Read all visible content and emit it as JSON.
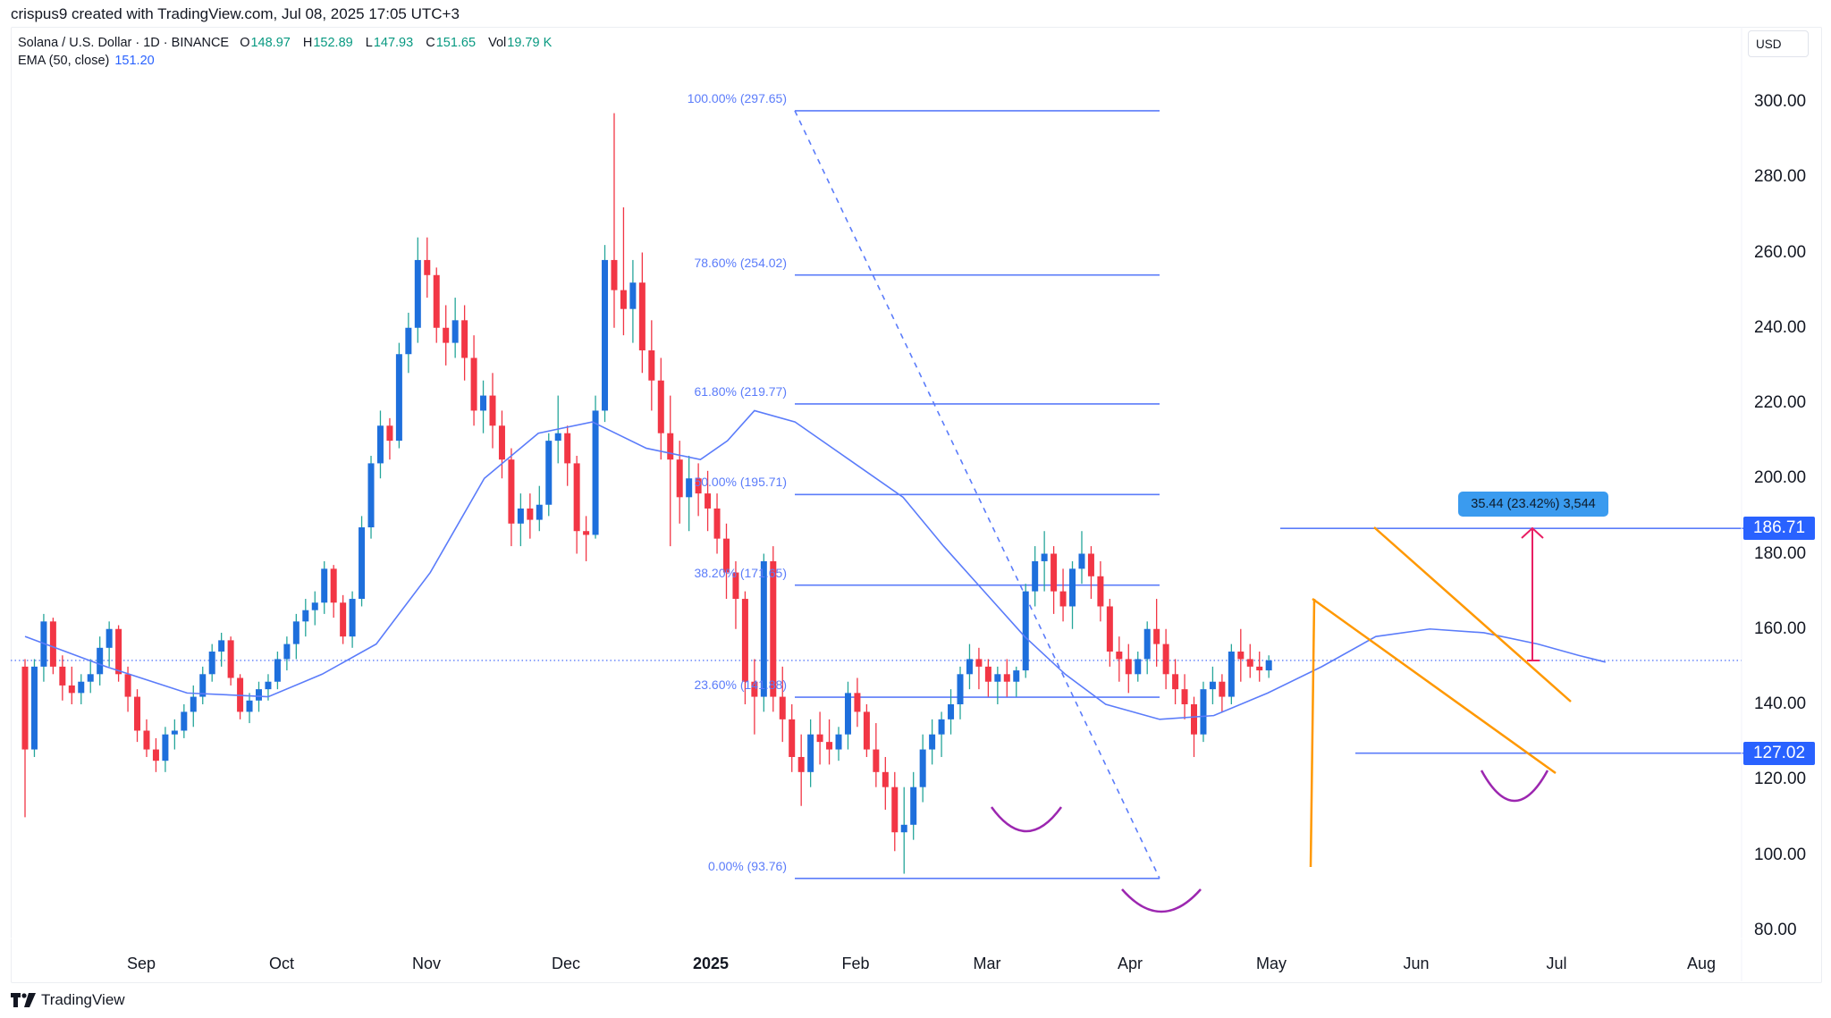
{
  "header": {
    "credit": "crispus9 created with TradingView.com, Jul 08, 2025 17:05 UTC+3"
  },
  "legend": {
    "symbol": "Solana / U.S. Dollar · 1D · BINANCE",
    "open_key": "O",
    "open": "148.97",
    "high_key": "H",
    "high": "152.89",
    "low_key": "L",
    "low": "147.93",
    "close_key": "C",
    "close": "151.65",
    "vol_key": "Vol",
    "vol": "19.79 K",
    "ema_label": "EMA (50, close)",
    "ema_value": "151.20"
  },
  "currency_button": "USD",
  "footer": {
    "brand": "TradingView"
  },
  "colors": {
    "bull_body": "#1e6fdc",
    "bull_wick": "#26a69a",
    "bear": "#f23645",
    "ema": "#5b7cfa",
    "fib": "#5b7cfa",
    "channel": "#ff9800",
    "arc": "#9c27b0",
    "arrow": "#e91e63",
    "price_tag": "#2962ff",
    "measure_box": "#3a9bef"
  },
  "chart_data": {
    "type": "candlestick",
    "title": "Solana / U.S. Dollar · 1D · BINANCE",
    "xlabel": "",
    "ylabel": "USD",
    "ylim": [
      75,
      310
    ],
    "grid": false,
    "y_ticks": [
      "300.00",
      "280.00",
      "260.00",
      "240.00",
      "220.00",
      "200.00",
      "180.00",
      "160.00",
      "140.00",
      "120.00",
      "100.00",
      "80.00"
    ],
    "x_ticks": [
      {
        "label": "Sep",
        "bold": false
      },
      {
        "label": "Oct",
        "bold": false
      },
      {
        "label": "Nov",
        "bold": false
      },
      {
        "label": "Dec",
        "bold": false
      },
      {
        "label": "2025",
        "bold": true
      },
      {
        "label": "Feb",
        "bold": false
      },
      {
        "label": "Mar",
        "bold": false
      },
      {
        "label": "Apr",
        "bold": false
      },
      {
        "label": "May",
        "bold": false
      },
      {
        "label": "Jun",
        "bold": false
      },
      {
        "label": "Jul",
        "bold": false
      },
      {
        "label": "Aug",
        "bold": false
      }
    ],
    "last_price": 151.65,
    "price_tags": [
      "186.71",
      "127.02"
    ],
    "fibonacci": [
      {
        "label": "100.00% (297.65)",
        "price": 297.65
      },
      {
        "label": "78.60% (254.02)",
        "price": 254.02
      },
      {
        "label": "61.80% (219.77)",
        "price": 219.77
      },
      {
        "label": "50.00% (195.71)",
        "price": 195.71
      },
      {
        "label": "38.20% (171.65)",
        "price": 171.65
      },
      {
        "label": "23.60% (141.88)",
        "price": 141.88
      },
      {
        "label": "0.00% (93.76)",
        "price": 93.76
      }
    ],
    "measure_label": "35.44 (23.42%) 3,544",
    "candle_interval_days": 2,
    "start_date": "2024-08-04",
    "ohlc": [
      [
        150,
        152,
        110,
        128
      ],
      [
        128,
        152,
        126,
        150
      ],
      [
        150,
        164,
        146,
        162
      ],
      [
        162,
        163,
        148,
        150
      ],
      [
        150,
        153,
        141,
        145
      ],
      [
        145,
        150,
        140,
        143
      ],
      [
        143,
        148,
        140,
        146
      ],
      [
        146,
        152,
        143,
        148
      ],
      [
        148,
        158,
        145,
        155
      ],
      [
        155,
        162,
        150,
        160
      ],
      [
        160,
        161,
        146,
        148
      ],
      [
        148,
        150,
        138,
        142
      ],
      [
        142,
        144,
        130,
        133
      ],
      [
        133,
        136,
        126,
        128
      ],
      [
        128,
        131,
        122,
        125
      ],
      [
        125,
        134,
        122,
        132
      ],
      [
        132,
        136,
        128,
        133
      ],
      [
        133,
        140,
        131,
        138
      ],
      [
        138,
        145,
        134,
        142
      ],
      [
        142,
        150,
        140,
        148
      ],
      [
        148,
        156,
        146,
        154
      ],
      [
        154,
        159,
        150,
        157
      ],
      [
        157,
        158,
        145,
        147
      ],
      [
        147,
        148,
        136,
        138
      ],
      [
        138,
        143,
        135,
        141
      ],
      [
        141,
        146,
        138,
        144
      ],
      [
        144,
        148,
        141,
        146
      ],
      [
        146,
        154,
        144,
        152
      ],
      [
        152,
        158,
        149,
        156
      ],
      [
        156,
        164,
        152,
        162
      ],
      [
        162,
        168,
        158,
        165
      ],
      [
        165,
        170,
        161,
        167
      ],
      [
        167,
        178,
        164,
        176
      ],
      [
        176,
        177,
        163,
        167
      ],
      [
        167,
        169,
        156,
        158
      ],
      [
        158,
        170,
        155,
        168
      ],
      [
        168,
        190,
        166,
        187
      ],
      [
        187,
        206,
        184,
        204
      ],
      [
        204,
        218,
        200,
        214
      ],
      [
        214,
        216,
        205,
        210
      ],
      [
        210,
        236,
        208,
        233
      ],
      [
        233,
        244,
        228,
        240
      ],
      [
        240,
        264,
        236,
        258
      ],
      [
        258,
        264,
        248,
        254
      ],
      [
        254,
        256,
        236,
        240
      ],
      [
        240,
        246,
        230,
        236
      ],
      [
        236,
        248,
        232,
        242
      ],
      [
        242,
        246,
        226,
        232
      ],
      [
        232,
        238,
        214,
        218
      ],
      [
        218,
        226,
        212,
        222
      ],
      [
        222,
        228,
        208,
        214
      ],
      [
        214,
        218,
        200,
        205
      ],
      [
        205,
        208,
        182,
        188
      ],
      [
        188,
        196,
        182,
        192
      ],
      [
        192,
        196,
        184,
        189
      ],
      [
        189,
        198,
        186,
        193
      ],
      [
        193,
        212,
        190,
        210
      ],
      [
        210,
        222,
        204,
        212
      ],
      [
        212,
        214,
        198,
        204
      ],
      [
        204,
        206,
        180,
        186
      ],
      [
        186,
        190,
        178,
        185
      ],
      [
        185,
        222,
        184,
        218
      ],
      [
        218,
        262,
        215,
        258
      ],
      [
        258,
        297,
        240,
        250
      ],
      [
        250,
        272,
        238,
        245
      ],
      [
        245,
        258,
        236,
        252
      ],
      [
        252,
        260,
        228,
        234
      ],
      [
        234,
        242,
        218,
        226
      ],
      [
        226,
        232,
        205,
        212
      ],
      [
        212,
        222,
        182,
        205
      ],
      [
        205,
        210,
        188,
        195
      ],
      [
        195,
        206,
        186,
        200
      ],
      [
        200,
        204,
        190,
        196
      ],
      [
        196,
        202,
        186,
        192
      ],
      [
        192,
        196,
        180,
        184
      ],
      [
        184,
        188,
        168,
        175
      ],
      [
        175,
        178,
        160,
        168
      ],
      [
        168,
        170,
        140,
        146
      ],
      [
        146,
        152,
        132,
        142
      ],
      [
        142,
        180,
        138,
        178
      ],
      [
        178,
        182,
        138,
        142
      ],
      [
        142,
        150,
        130,
        136
      ],
      [
        136,
        140,
        122,
        126
      ],
      [
        126,
        132,
        113,
        122
      ],
      [
        122,
        136,
        118,
        132
      ],
      [
        132,
        138,
        124,
        130
      ],
      [
        130,
        136,
        124,
        128
      ],
      [
        128,
        134,
        125,
        132
      ],
      [
        132,
        146,
        128,
        143
      ],
      [
        143,
        147,
        134,
        138
      ],
      [
        138,
        140,
        126,
        128
      ],
      [
        128,
        135,
        118,
        122
      ],
      [
        122,
        126,
        112,
        118
      ],
      [
        118,
        122,
        101,
        106
      ],
      [
        106,
        118,
        95,
        108
      ],
      [
        108,
        122,
        104,
        118
      ],
      [
        118,
        132,
        114,
        128
      ],
      [
        128,
        136,
        124,
        132
      ],
      [
        132,
        138,
        126,
        136
      ],
      [
        136,
        144,
        132,
        140
      ],
      [
        140,
        150,
        136,
        148
      ],
      [
        148,
        156,
        144,
        152
      ],
      [
        152,
        155,
        144,
        150
      ],
      [
        150,
        152,
        142,
        146
      ],
      [
        146,
        150,
        140,
        148
      ],
      [
        148,
        152,
        142,
        146
      ],
      [
        146,
        150,
        142,
        149
      ],
      [
        149,
        172,
        147,
        170
      ],
      [
        170,
        182,
        166,
        178
      ],
      [
        178,
        186,
        170,
        180
      ],
      [
        180,
        182,
        164,
        170
      ],
      [
        170,
        176,
        162,
        166
      ],
      [
        166,
        178,
        160,
        176
      ],
      [
        176,
        186,
        172,
        180
      ],
      [
        180,
        182,
        168,
        174
      ],
      [
        174,
        178,
        162,
        166
      ],
      [
        166,
        168,
        150,
        154
      ],
      [
        154,
        158,
        146,
        152
      ],
      [
        152,
        156,
        143,
        148
      ],
      [
        148,
        154,
        146,
        152
      ],
      [
        152,
        162,
        148,
        160
      ],
      [
        160,
        168,
        150,
        156
      ],
      [
        156,
        160,
        144,
        148
      ],
      [
        148,
        152,
        140,
        144
      ],
      [
        144,
        148,
        136,
        140
      ],
      [
        140,
        142,
        126,
        132
      ],
      [
        132,
        146,
        130,
        144
      ],
      [
        144,
        150,
        140,
        146
      ],
      [
        146,
        148,
        138,
        142
      ],
      [
        142,
        156,
        140,
        154
      ],
      [
        154,
        160,
        146,
        152
      ],
      [
        152,
        156,
        147,
        150
      ],
      [
        150,
        154,
        146,
        149
      ],
      [
        149,
        153,
        147,
        151.65
      ]
    ],
    "ema50": [
      [
        0,
        158
      ],
      [
        30,
        150
      ],
      [
        60,
        143
      ],
      [
        90,
        142
      ],
      [
        110,
        148
      ],
      [
        130,
        156
      ],
      [
        150,
        175
      ],
      [
        170,
        200
      ],
      [
        190,
        212
      ],
      [
        210,
        215
      ],
      [
        230,
        208
      ],
      [
        250,
        205
      ],
      [
        260,
        210
      ],
      [
        270,
        218
      ],
      [
        285,
        215
      ],
      [
        305,
        205
      ],
      [
        325,
        195
      ],
      [
        340,
        182
      ],
      [
        355,
        170
      ],
      [
        370,
        158
      ],
      [
        385,
        148
      ],
      [
        400,
        140
      ],
      [
        420,
        136
      ],
      [
        440,
        137
      ],
      [
        460,
        143
      ],
      [
        480,
        150
      ],
      [
        500,
        158
      ],
      [
        520,
        160
      ],
      [
        540,
        159
      ],
      [
        560,
        156
      ],
      [
        575,
        153
      ],
      [
        585,
        151.2
      ]
    ]
  }
}
